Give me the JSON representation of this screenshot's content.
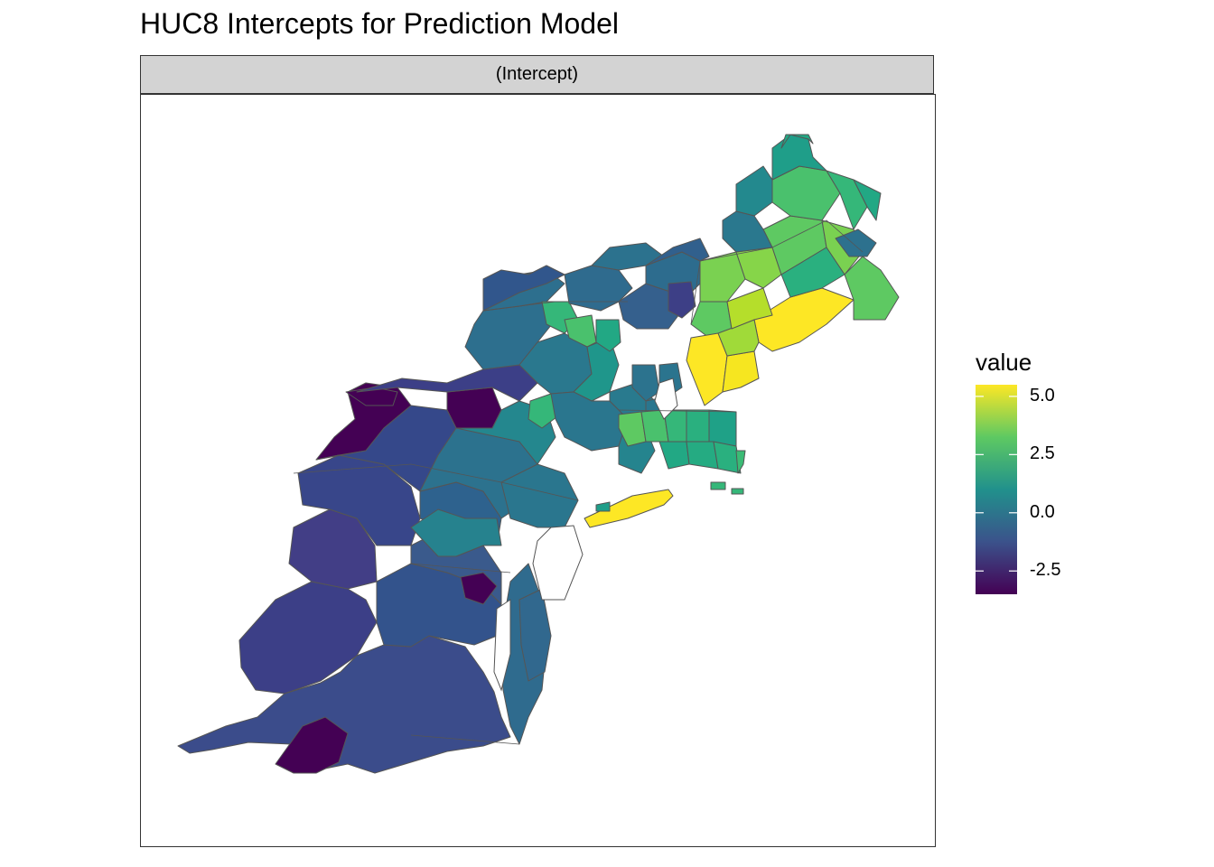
{
  "title": "HUC8 Intercepts for Prediction Model",
  "facet_label": "(Intercept)",
  "legend": {
    "title": "value",
    "ticks": [
      "5.0",
      "2.5",
      "0.0",
      "-2.5"
    ],
    "tick_values": [
      5.0,
      2.5,
      0.0,
      -2.5
    ],
    "range": [
      -3.5,
      5.5
    ],
    "colors": [
      "#fde725",
      "#5ec962",
      "#21918c",
      "#3b528b",
      "#440154"
    ]
  },
  "map": {
    "region": "Northeastern United States (Virginia to Maine)",
    "palette": "viridis",
    "border_color": "#555555"
  }
}
